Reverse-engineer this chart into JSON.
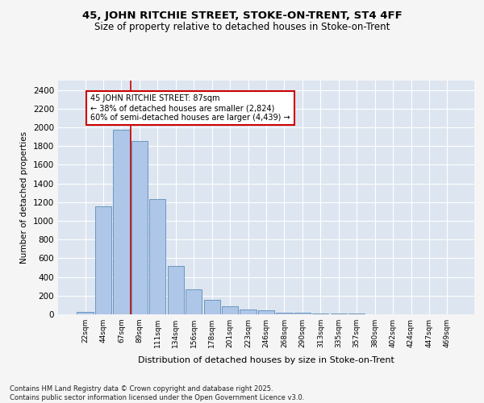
{
  "title_line1": "45, JOHN RITCHIE STREET, STOKE-ON-TRENT, ST4 4FF",
  "title_line2": "Size of property relative to detached houses in Stoke-on-Trent",
  "xlabel": "Distribution of detached houses by size in Stoke-on-Trent",
  "ylabel": "Number of detached properties",
  "bar_color": "#aec6e8",
  "bar_edge_color": "#5b8db8",
  "background_color": "#dde5f0",
  "grid_color": "#ffffff",
  "fig_background": "#f5f5f5",
  "categories": [
    "22sqm",
    "44sqm",
    "67sqm",
    "89sqm",
    "111sqm",
    "134sqm",
    "156sqm",
    "178sqm",
    "201sqm",
    "223sqm",
    "246sqm",
    "268sqm",
    "290sqm",
    "313sqm",
    "335sqm",
    "357sqm",
    "380sqm",
    "402sqm",
    "424sqm",
    "447sqm",
    "469sqm"
  ],
  "values": [
    25,
    1155,
    1970,
    1850,
    1230,
    515,
    270,
    155,
    90,
    50,
    40,
    20,
    15,
    10,
    5,
    5,
    3,
    2,
    2,
    2,
    2
  ],
  "ylim": [
    0,
    2500
  ],
  "yticks": [
    0,
    200,
    400,
    600,
    800,
    1000,
    1200,
    1400,
    1600,
    1800,
    2000,
    2200,
    2400
  ],
  "red_line_x": 2.5,
  "annotation_title": "45 JOHN RITCHIE STREET: 87sqm",
  "annotation_line1": "← 38% of detached houses are smaller (2,824)",
  "annotation_line2": "60% of semi-detached houses are larger (4,439) →",
  "annotation_box_color": "#ffffff",
  "annotation_box_edge": "#cc0000",
  "red_line_color": "#cc0000",
  "footer_line1": "Contains HM Land Registry data © Crown copyright and database right 2025.",
  "footer_line2": "Contains public sector information licensed under the Open Government Licence v3.0."
}
